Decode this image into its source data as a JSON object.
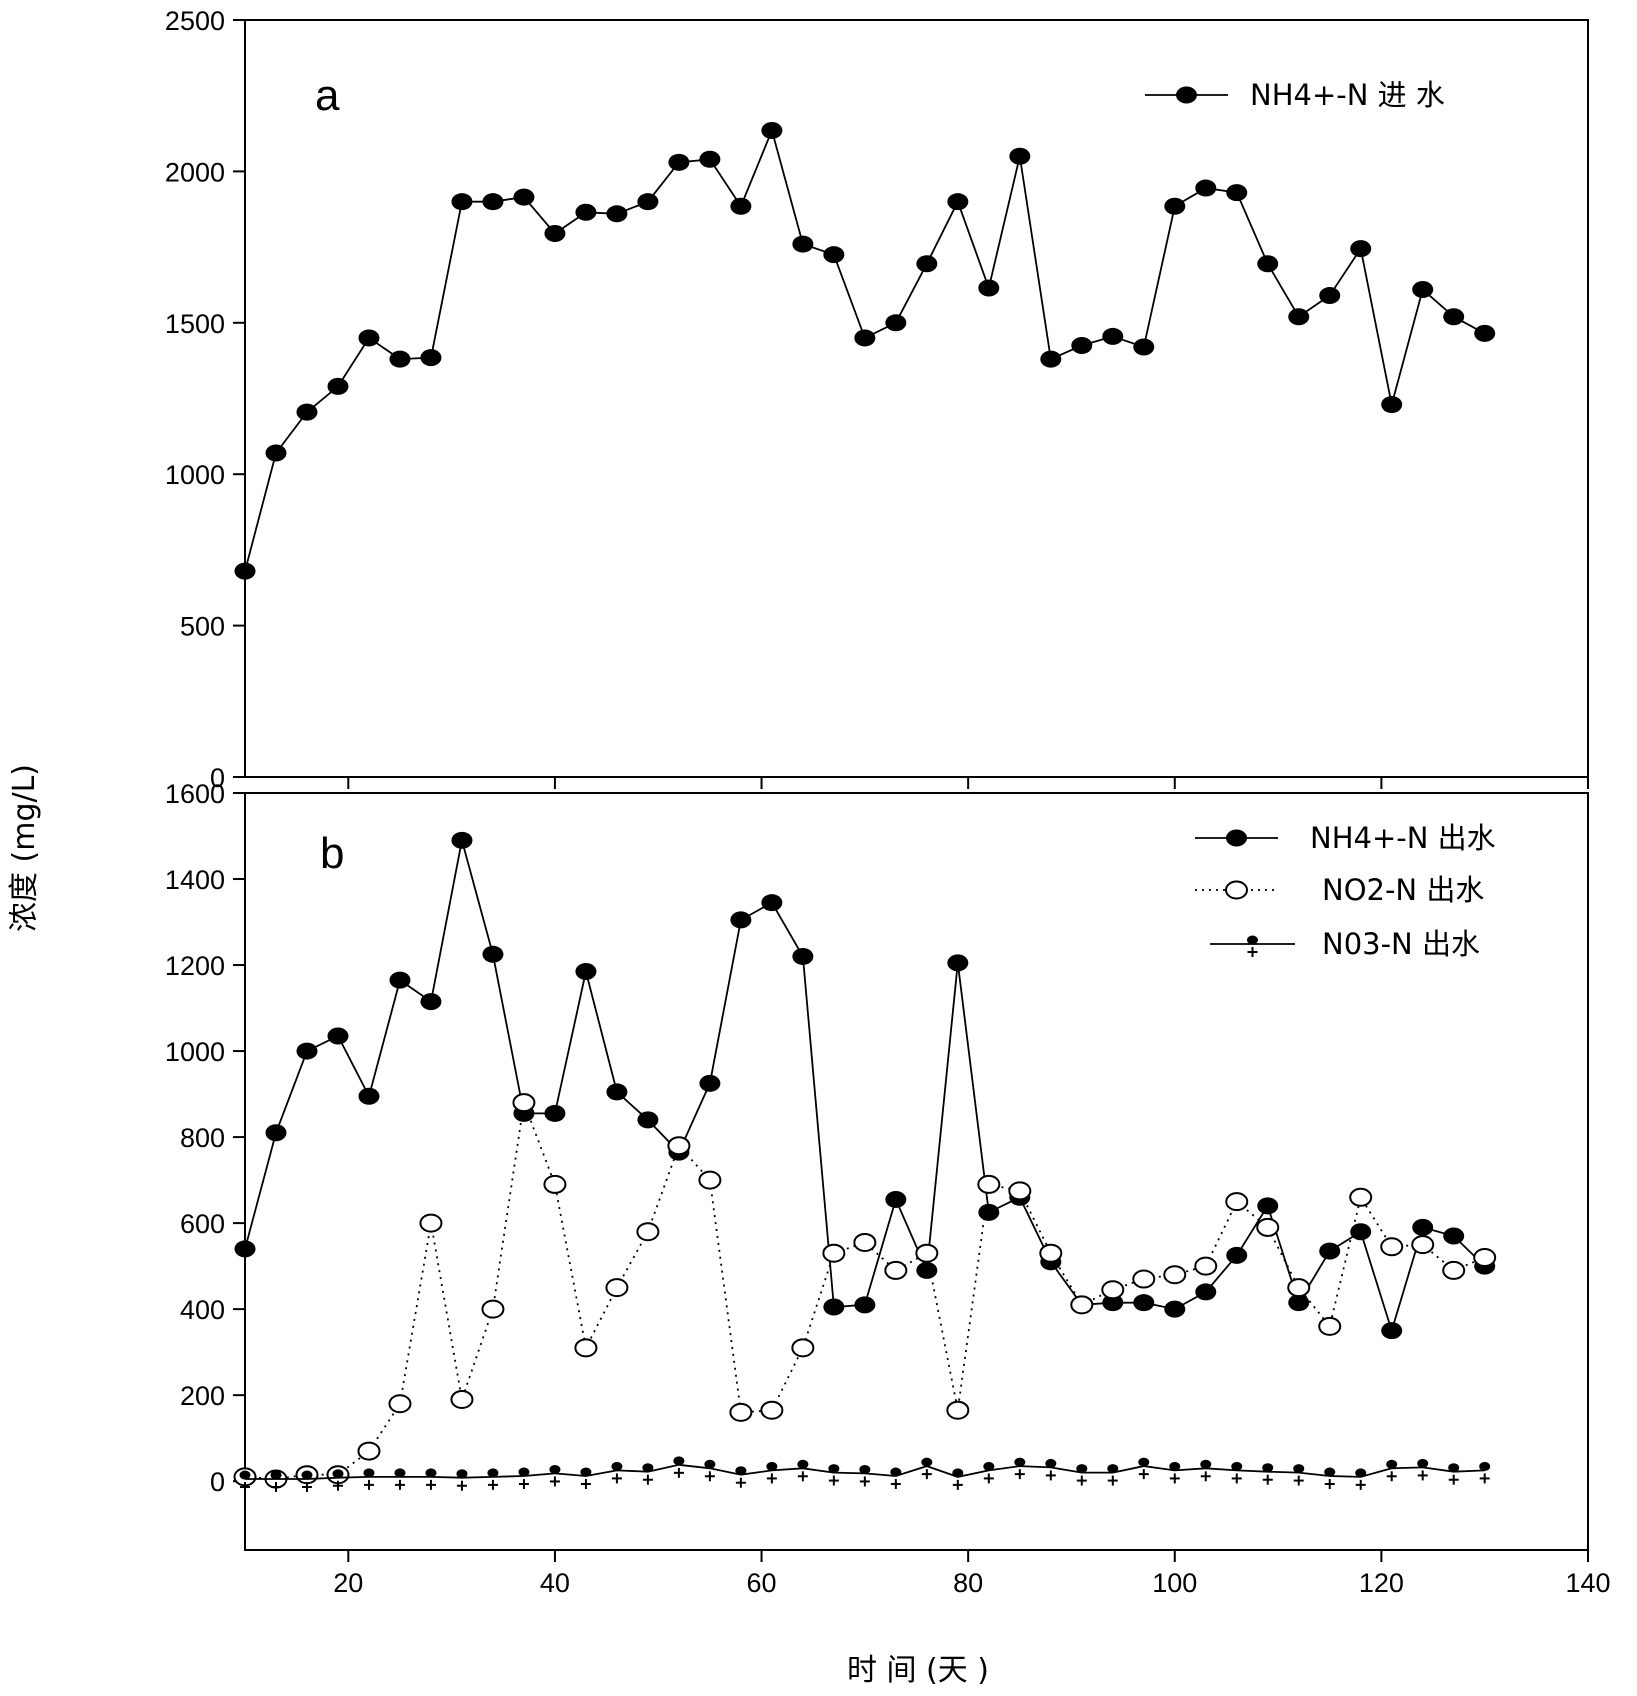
{
  "chart_data": [
    {
      "type": "line",
      "panel_label": "a",
      "xlim": [
        10,
        140
      ],
      "ylim": [
        0,
        2500
      ],
      "yticks": [
        0,
        500,
        1000,
        1500,
        2000,
        2500
      ],
      "legend_position": "top-right",
      "series": [
        {
          "name": "NH4+-N 进 水",
          "marker": "filled-circle",
          "line": "solid",
          "x": [
            10,
            13,
            16,
            19,
            22,
            25,
            28,
            31,
            34,
            37,
            40,
            43,
            46,
            49,
            52,
            55,
            58,
            61,
            64,
            67,
            70,
            73,
            76,
            79,
            82,
            85,
            88,
            91,
            94,
            97,
            100,
            103,
            106,
            109,
            112,
            115,
            118,
            121,
            124,
            127,
            130
          ],
          "y": [
            680,
            1070,
            1205,
            1290,
            1450,
            1380,
            1385,
            1900,
            1900,
            1915,
            1795,
            1865,
            1860,
            1900,
            2030,
            2040,
            1885,
            2135,
            1760,
            1725,
            1450,
            1500,
            1695,
            1900,
            1615,
            2050,
            1380,
            1425,
            1455,
            1420,
            1885,
            1945,
            1930,
            1695,
            1520,
            1590,
            1745,
            1230,
            1610,
            1520,
            1465
          ]
        }
      ]
    },
    {
      "type": "line",
      "panel_label": "b",
      "xlim": [
        10,
        140
      ],
      "ylim": [
        -160,
        1600
      ],
      "yticks": [
        0,
        200,
        400,
        600,
        800,
        1000,
        1200,
        1400,
        1600
      ],
      "xticks": [
        20,
        40,
        60,
        80,
        100,
        120,
        140
      ],
      "xlabel": "时 间 (天 )",
      "ylabel": "浓度 (mg/L)",
      "legend_position": "top-right",
      "series": [
        {
          "name": "NH4+-N 出水",
          "marker": "filled-circle",
          "line": "solid",
          "x": [
            10,
            13,
            16,
            19,
            22,
            25,
            28,
            31,
            34,
            37,
            40,
            43,
            46,
            49,
            52,
            55,
            58,
            61,
            64,
            67,
            70,
            73,
            76,
            79,
            82,
            85,
            88,
            91,
            94,
            97,
            100,
            103,
            106,
            109,
            112,
            115,
            118,
            121,
            124,
            127,
            130
          ],
          "y": [
            540,
            810,
            1000,
            1035,
            895,
            1165,
            1115,
            1490,
            1225,
            855,
            855,
            1185,
            905,
            840,
            765,
            925,
            1305,
            1345,
            1220,
            405,
            410,
            655,
            490,
            1205,
            625,
            660,
            510,
            410,
            415,
            415,
            400,
            440,
            525,
            640,
            415,
            535,
            580,
            350,
            590,
            570,
            500
          ]
        },
        {
          "name": "NO2-N 出水",
          "marker": "open-circle",
          "line": "dotted",
          "x": [
            10,
            13,
            16,
            19,
            22,
            25,
            28,
            31,
            34,
            37,
            40,
            43,
            46,
            49,
            52,
            55,
            58,
            61,
            64,
            67,
            70,
            73,
            76,
            79,
            82,
            85,
            88,
            91,
            94,
            97,
            100,
            103,
            106,
            109,
            112,
            115,
            118,
            121,
            124,
            127,
            130
          ],
          "y": [
            10,
            5,
            15,
            15,
            70,
            180,
            600,
            190,
            400,
            880,
            690,
            310,
            450,
            580,
            780,
            700,
            160,
            165,
            310,
            530,
            555,
            490,
            530,
            165,
            690,
            675,
            530,
            410,
            445,
            470,
            480,
            500,
            650,
            590,
            450,
            360,
            660,
            545,
            550,
            490,
            520
          ]
        },
        {
          "name": "N03-N 出水",
          "marker": "dot-plus",
          "line": "solid",
          "x": [
            10,
            13,
            16,
            19,
            22,
            25,
            28,
            31,
            34,
            37,
            40,
            43,
            46,
            49,
            52,
            55,
            58,
            61,
            64,
            67,
            70,
            73,
            76,
            79,
            82,
            85,
            88,
            91,
            94,
            97,
            100,
            103,
            106,
            109,
            112,
            115,
            118,
            121,
            124,
            127,
            130
          ],
          "y": [
            5,
            5,
            5,
            8,
            10,
            10,
            10,
            8,
            10,
            12,
            18,
            12,
            25,
            22,
            38,
            30,
            15,
            25,
            30,
            20,
            18,
            12,
            35,
            10,
            25,
            35,
            32,
            20,
            20,
            35,
            25,
            30,
            25,
            22,
            20,
            12,
            10,
            30,
            32,
            22,
            25
          ]
        }
      ]
    }
  ]
}
